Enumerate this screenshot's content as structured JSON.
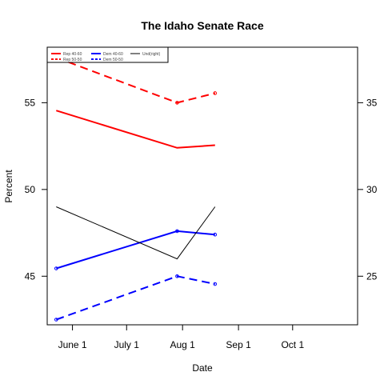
{
  "chart_data": {
    "type": "line",
    "title": "The Idaho Senate Race",
    "xlabel": "Date",
    "ylabel": "Percent",
    "x_ticks": [
      "June 1",
      "July 1",
      "Aug 1",
      "Sep 1",
      "Oct 1"
    ],
    "x_tick_dates": [
      "2008-06-01",
      "2008-07-01",
      "2008-08-01",
      "2008-09-01",
      "2008-10-01"
    ],
    "xlim": [
      "2008-05-18",
      "2008-11-06"
    ],
    "ylim_left": [
      42.2,
      58.2
    ],
    "ylim_right": [
      22.2,
      38.2
    ],
    "y_ticks_left": [
      45,
      50,
      55
    ],
    "y_ticks_right": [
      25,
      30,
      35
    ],
    "legend_position": "top-left",
    "series": [
      {
        "name": "Rep 40-60",
        "color": "#ff0000",
        "style": "solid",
        "width": 2,
        "axis": "left",
        "markers": false,
        "x": [
          "2008-05-23",
          "2008-07-29",
          "2008-08-19"
        ],
        "y": [
          54.55,
          52.4,
          52.55
        ]
      },
      {
        "name": "Rep 50-50",
        "color": "#ff0000",
        "style": "dashed",
        "width": 2,
        "axis": "left",
        "markers": true,
        "x": [
          "2008-05-23",
          "2008-07-29",
          "2008-08-19"
        ],
        "y": [
          57.6,
          55.0,
          55.55
        ]
      },
      {
        "name": "Dem 40-60",
        "color": "#0000ff",
        "style": "solid",
        "width": 2,
        "axis": "left",
        "markers": true,
        "x": [
          "2008-05-23",
          "2008-07-29",
          "2008-08-19"
        ],
        "y": [
          45.45,
          47.6,
          47.4
        ]
      },
      {
        "name": "Dem 50-50",
        "color": "#0000ff",
        "style": "dashed",
        "width": 2,
        "axis": "left",
        "markers": true,
        "x": [
          "2008-05-23",
          "2008-07-29",
          "2008-08-19"
        ],
        "y": [
          42.5,
          45.0,
          44.55
        ]
      },
      {
        "name": "Und(right)",
        "color": "#000000",
        "style": "solid",
        "width": 1,
        "axis": "right",
        "markers": false,
        "x": [
          "2008-05-23",
          "2008-07-29",
          "2008-08-19"
        ],
        "y": [
          29.0,
          26.0,
          29.0
        ]
      }
    ]
  }
}
